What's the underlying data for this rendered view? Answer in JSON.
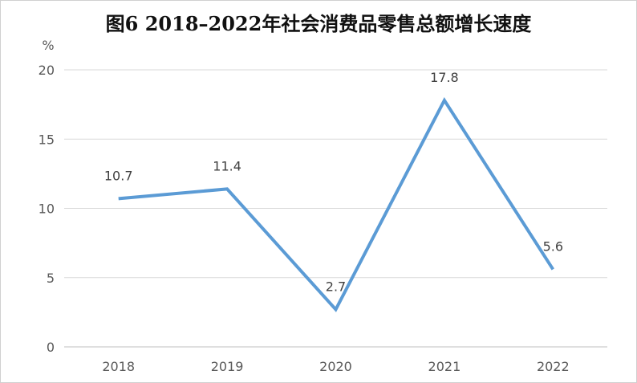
{
  "chart_data": {
    "type": "line",
    "title": "图6  2018–2022年社会消费品零售总额增长速度",
    "ylabel": "%",
    "xlabel": "",
    "categories": [
      "2018",
      "2019",
      "2020",
      "2021",
      "2022"
    ],
    "series": [
      {
        "values": [
          10.7,
          11.4,
          2.7,
          17.8,
          5.6
        ],
        "color": "#5b9bd5"
      }
    ],
    "data_labels": [
      "10.7",
      "11.4",
      "2.7",
      "17.8",
      "5.6"
    ],
    "ylim": [
      0,
      20
    ],
    "yticks": [
      0,
      5,
      10,
      15,
      20
    ],
    "grid": true,
    "legend": "none"
  }
}
